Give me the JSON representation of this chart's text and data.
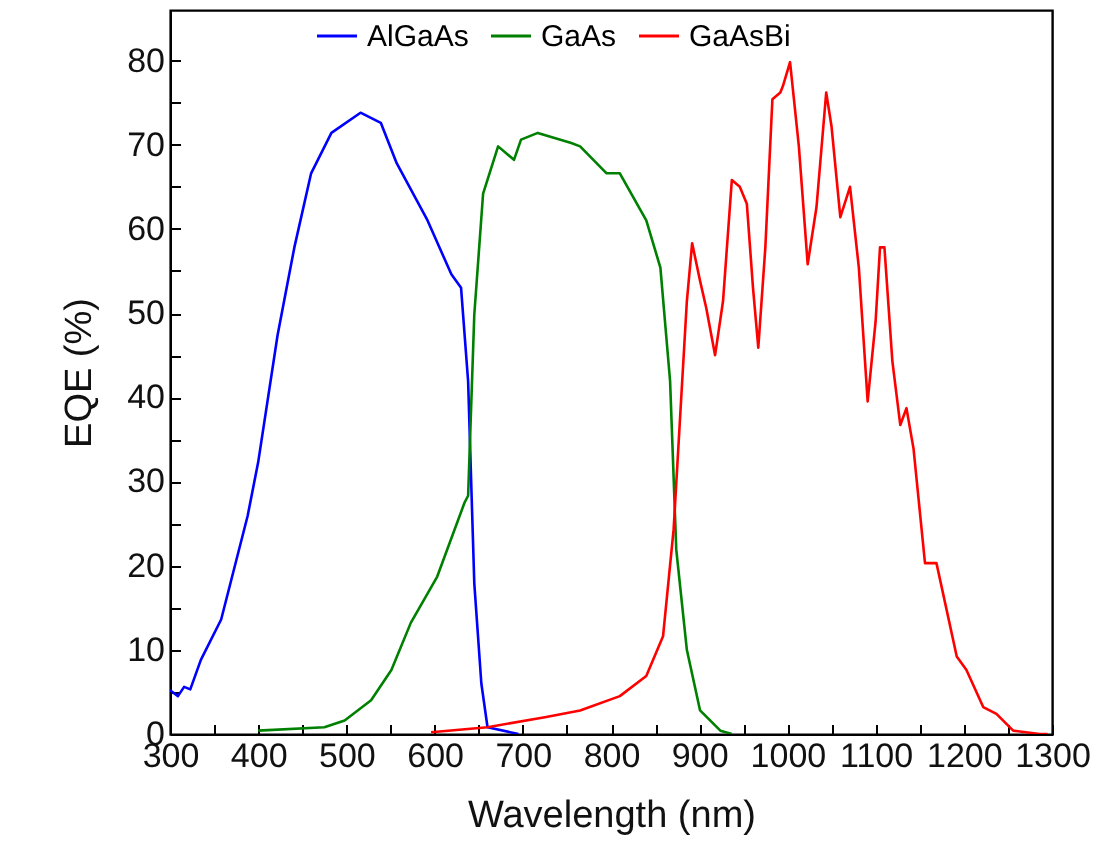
{
  "chart_data": {
    "type": "line",
    "xlabel": "Wavelength (nm)",
    "ylabel": "EQE (%)",
    "xlim": [
      300,
      1300
    ],
    "ylim": [
      0,
      86
    ],
    "xticks": [
      300,
      {
        "value": 350,
        "label": null
      },
      400,
      {
        "value": 450,
        "label": null
      },
      500,
      {
        "value": 550,
        "label": null
      },
      600,
      {
        "value": 650,
        "label": null
      },
      700,
      {
        "value": 750,
        "label": null
      },
      800,
      {
        "value": 850,
        "label": null
      },
      900,
      {
        "value": 950,
        "label": null
      },
      1000,
      {
        "value": 1050,
        "label": null
      },
      1100,
      {
        "value": 1150,
        "label": null
      },
      1200,
      {
        "value": 1250,
        "label": null
      },
      1300
    ],
    "yticks": [
      0,
      {
        "value": 5,
        "label": null
      },
      10,
      {
        "value": 15,
        "label": null
      },
      20,
      {
        "value": 25,
        "label": null
      },
      30,
      {
        "value": 35,
        "label": null
      },
      40,
      {
        "value": 45,
        "label": null
      },
      50,
      {
        "value": 55,
        "label": null
      },
      60,
      {
        "value": 65,
        "label": null
      },
      70,
      {
        "value": 75,
        "label": null
      },
      80
    ],
    "legend": "top",
    "grid": false,
    "line_style": "solid",
    "marker": "none",
    "series": [
      {
        "name": "AlGaAs",
        "color": "#0000ff",
        "x": [
          300,
          309,
          316,
          323,
          335,
          358,
          388,
          400,
          422,
          441,
          460,
          483,
          516,
          539,
          557,
          592,
          619,
          630,
          638,
          645,
          653,
          660,
          695
        ],
        "values": [
          5.2,
          4.5,
          5.6,
          5.3,
          8.8,
          13.6,
          25.9,
          32.3,
          47.4,
          57.8,
          66.6,
          71.4,
          73.8,
          72.6,
          67.8,
          61,
          54.6,
          53,
          41.9,
          17.9,
          6,
          0.8,
          0
        ]
      },
      {
        "name": "GaAs",
        "color": "#008000",
        "x": [
          400,
          475,
          498,
          528,
          551,
          573,
          603,
          634,
          638,
          645,
          655,
          672,
          690,
          698,
          717,
          755,
          765,
          795,
          810,
          840,
          856,
          867,
          874,
          886,
          901,
          924,
          937
        ],
        "values": [
          0.4,
          0.8,
          1.6,
          4,
          7.6,
          13.2,
          18.7,
          27.5,
          28.3,
          49.8,
          64.2,
          69.8,
          68.2,
          70.6,
          71.4,
          70.2,
          69.8,
          66.6,
          66.6,
          61,
          55.4,
          41.9,
          21.9,
          10,
          2.8,
          0.4,
          0
        ]
      },
      {
        "name": "GaAsBi",
        "color": "#ff0000",
        "x": [
          596,
          660,
          725,
          765,
          810,
          840,
          859,
          871,
          878,
          886,
          892,
          901,
          908,
          918,
          927,
          937,
          946,
          954,
          961,
          967,
          975,
          983,
          992,
          995,
          1003,
          1013,
          1023,
          1033,
          1044,
          1050,
          1060,
          1071,
          1081,
          1091,
          1100,
          1105,
          1110,
          1119,
          1128,
          1135,
          1143,
          1156,
          1169,
          1192,
          1203,
          1222,
          1237,
          1256,
          1286,
          1295
        ],
        "values": [
          0.2,
          0.8,
          2,
          2.8,
          4.5,
          6.9,
          11.6,
          24.3,
          37,
          51.4,
          58.3,
          53.8,
          50.6,
          45,
          51.4,
          65.8,
          65,
          63,
          53,
          45.9,
          57.8,
          75.4,
          76.2,
          77,
          79.8,
          69.8,
          55.8,
          62.6,
          76.2,
          72.2,
          61.4,
          65,
          55.4,
          39.5,
          49,
          57.8,
          57.8,
          44.3,
          36.7,
          38.7,
          33.9,
          20.3,
          20.3,
          9.2,
          7.6,
          3.2,
          2.4,
          0.4,
          0,
          0
        ]
      }
    ]
  }
}
